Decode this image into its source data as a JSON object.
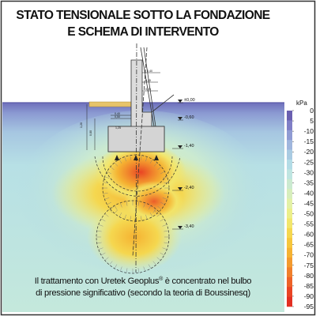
{
  "figure": {
    "title_line1": "STATO TENSIONALE SOTTO LA FONDAZIONE",
    "title_line2": "E SCHEMA DI INTERVENTO",
    "caption_line1_pre": "Il trattamento con Uretek Geoplus",
    "caption_line1_sup": "®",
    "caption_line1_post": " è concentrato nel bulbo",
    "caption_line2": "di pressione significativo (secondo la teoria di Boussinesq)"
  },
  "legend": {
    "unit": "kPa",
    "ticks": [
      "0",
      "5",
      "-10",
      "-15",
      "-20",
      "-25",
      "-30",
      "-35",
      "-40",
      "-45",
      "-50",
      "-55",
      "-60",
      "-65",
      "-70",
      "-75",
      "-80",
      "-85",
      "-90",
      "-95"
    ],
    "colors": [
      "#6a5fb0",
      "#7f7ec6",
      "#8f9bd3",
      "#9fb6dd",
      "#a9cbe2",
      "#b3dce6",
      "#bfe5e1",
      "#cbead0",
      "#d7eebc",
      "#e3f1a6",
      "#ecef8a",
      "#f2e66c",
      "#f5d74f",
      "#f6c63c",
      "#f5b232",
      "#f39a2e",
      "#f07f2b",
      "#ed6228",
      "#e94424",
      "#e22f22"
    ]
  },
  "section": {
    "ground_level_label": "±0,00",
    "depth_labels": [
      "-0,60",
      "-1,40",
      "-2,40",
      "-3,40"
    ],
    "dimension_labels": [
      "0,40",
      "0,25",
      "0,25",
      "1,20",
      "0,80",
      "0,40",
      "0,50",
      "1,25"
    ],
    "colors": {
      "sky": "#ffffff",
      "soil_surface": "#6e6fbb",
      "concrete": "#dcdcdc",
      "pavement": "#e7c46a",
      "injection_point": "#222222"
    }
  }
}
